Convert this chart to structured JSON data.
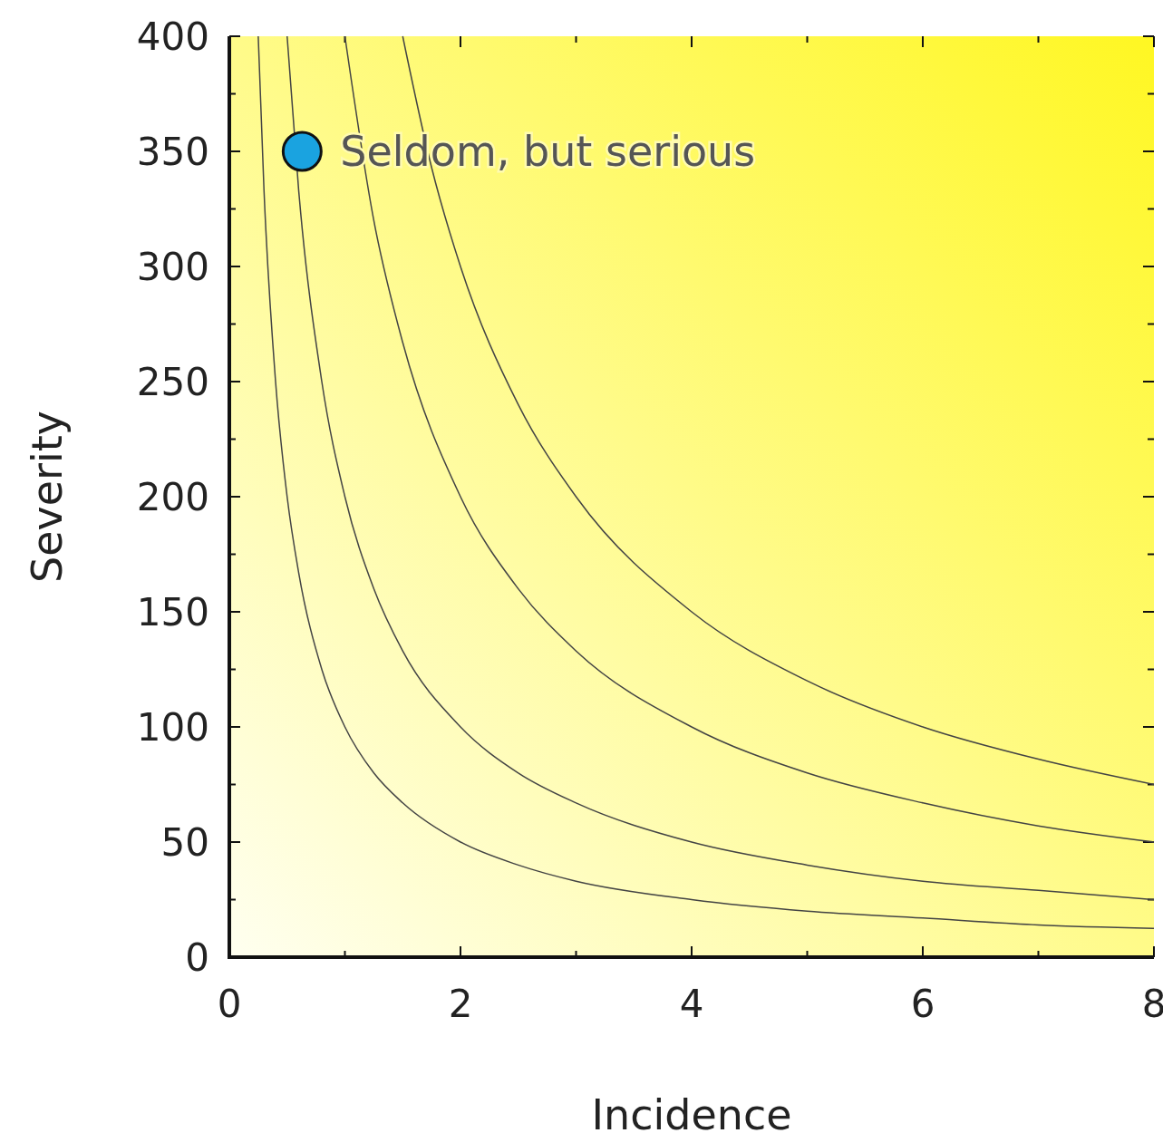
{
  "chart_data": {
    "type": "line",
    "xlabel": "Incidence",
    "ylabel": "Severity",
    "xlim": [
      0,
      8
    ],
    "ylim": [
      0,
      400
    ],
    "xticks": [
      0,
      {
        "value": 1,
        "label": null
      },
      2,
      {
        "value": 3,
        "label": null
      },
      4,
      {
        "value": 5,
        "label": null
      },
      6,
      {
        "value": 7,
        "label": null
      },
      8
    ],
    "yticks": [
      0,
      {
        "value": 25,
        "label": null
      },
      50,
      {
        "value": 75,
        "label": null
      },
      100,
      {
        "value": 125,
        "label": null
      },
      150,
      {
        "value": 175,
        "label": null
      },
      200,
      {
        "value": 225,
        "label": null
      },
      250,
      {
        "value": 275,
        "label": null
      },
      300,
      {
        "value": 325,
        "label": null
      },
      350,
      {
        "value": 375,
        "label": null
      },
      400
    ],
    "grid": false,
    "series": [
      {
        "color": "#444444",
        "x": [
          0.25,
          0.3,
          0.4,
          0.5,
          0.6,
          0.8,
          1,
          1.25,
          1.5,
          2,
          2.5,
          3,
          4,
          5,
          6,
          7,
          8
        ],
        "values": [
          400,
          333,
          250,
          200,
          167,
          125,
          100,
          80,
          67,
          50,
          40,
          33,
          25,
          20,
          17,
          14,
          12.5
        ]
      },
      {
        "color": "#444444",
        "x": [
          0.5,
          0.6,
          0.8,
          1,
          1.25,
          1.5,
          2,
          2.5,
          3,
          4,
          5,
          6,
          7,
          8
        ],
        "values": [
          400,
          333,
          250,
          200,
          160,
          133,
          100,
          80,
          67,
          50,
          40,
          33,
          29,
          25
        ]
      },
      {
        "color": "#444444",
        "x": [
          1,
          1.25,
          1.5,
          2,
          2.5,
          3,
          4,
          5,
          6,
          7,
          8
        ],
        "values": [
          400,
          320,
          267,
          200,
          160,
          133,
          100,
          80,
          67,
          57,
          50
        ]
      },
      {
        "color": "#444444",
        "x": [
          1.5,
          1.75,
          2,
          2.5,
          3,
          4,
          5,
          6,
          7,
          8
        ],
        "values": [
          400,
          343,
          300,
          240,
          200,
          150,
          120,
          100,
          86,
          75
        ]
      },
      {
        "type": "scatter",
        "name": "Seldom, but serious",
        "color": "#1aa3e0",
        "marker": "circle",
        "x": [
          0.63
        ],
        "values": [
          350
        ]
      }
    ]
  }
}
